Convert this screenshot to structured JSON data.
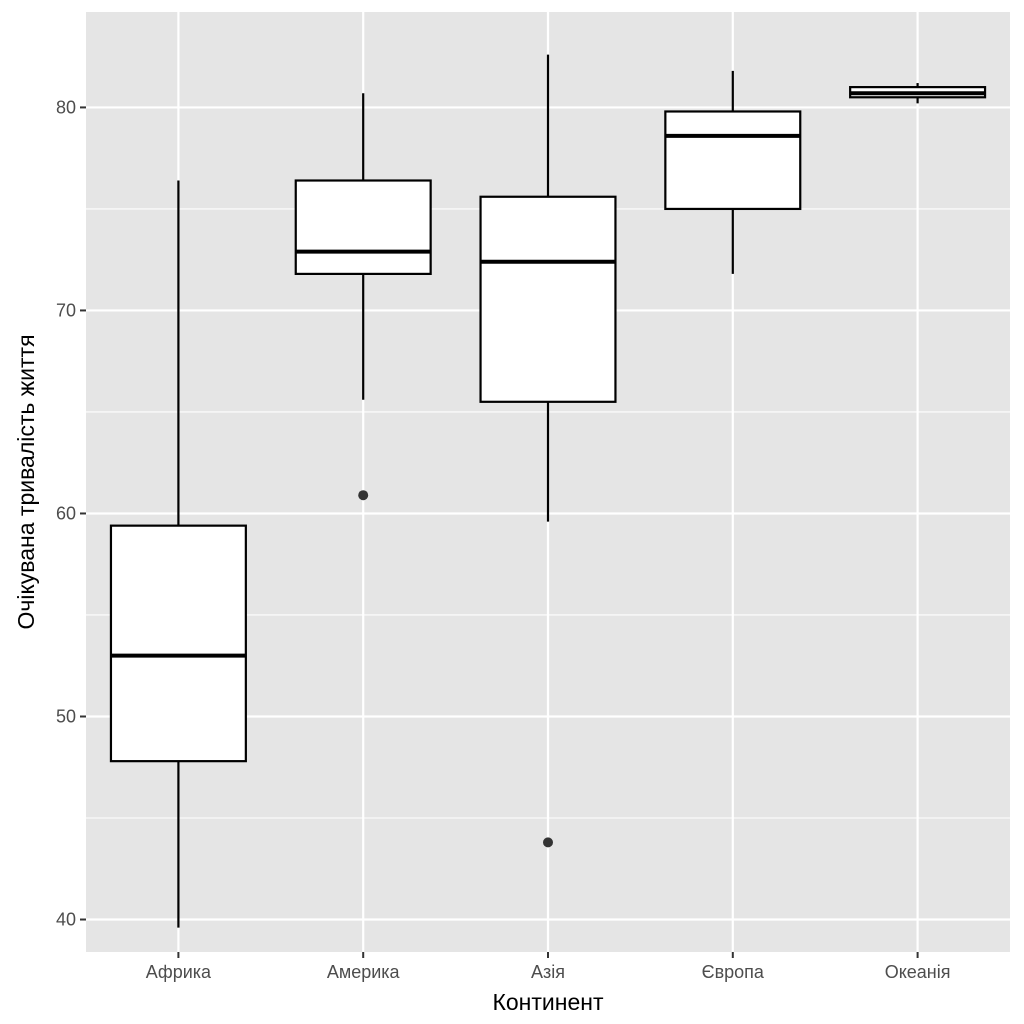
{
  "chart_data": {
    "type": "boxplot",
    "title": "",
    "xlabel": "Континент",
    "ylabel": "Очікувана тривалість життя",
    "categories": [
      "Африка",
      "Америка",
      "Азія",
      "Європа",
      "Океанія"
    ],
    "boxes": [
      {
        "category": "Африка",
        "min": 39.6,
        "q1": 47.8,
        "median": 53.0,
        "q3": 59.4,
        "max": 76.4,
        "outliers": []
      },
      {
        "category": "Америка",
        "min": 65.6,
        "q1": 71.8,
        "median": 72.9,
        "q3": 76.4,
        "max": 80.7,
        "outliers": [
          60.9
        ]
      },
      {
        "category": "Азія",
        "min": 59.6,
        "q1": 65.5,
        "median": 72.4,
        "q3": 75.6,
        "max": 82.6,
        "outliers": [
          43.8
        ]
      },
      {
        "category": "Європа",
        "min": 71.8,
        "q1": 75.0,
        "median": 78.6,
        "q3": 79.8,
        "max": 81.8,
        "outliers": []
      },
      {
        "category": "Океанія",
        "min": 80.2,
        "q1": 80.5,
        "median": 80.7,
        "q3": 81.0,
        "max": 81.2,
        "outliers": []
      }
    ],
    "ylim": [
      38.4,
      84.7
    ],
    "yticks": [
      40,
      50,
      60,
      70,
      80
    ],
    "grid": true,
    "colors": {
      "panel_background": "#e5e5e5",
      "grid": "#ffffff",
      "box_fill": "#ffffff",
      "box_stroke": "#000000",
      "outlier": "#333333"
    }
  }
}
